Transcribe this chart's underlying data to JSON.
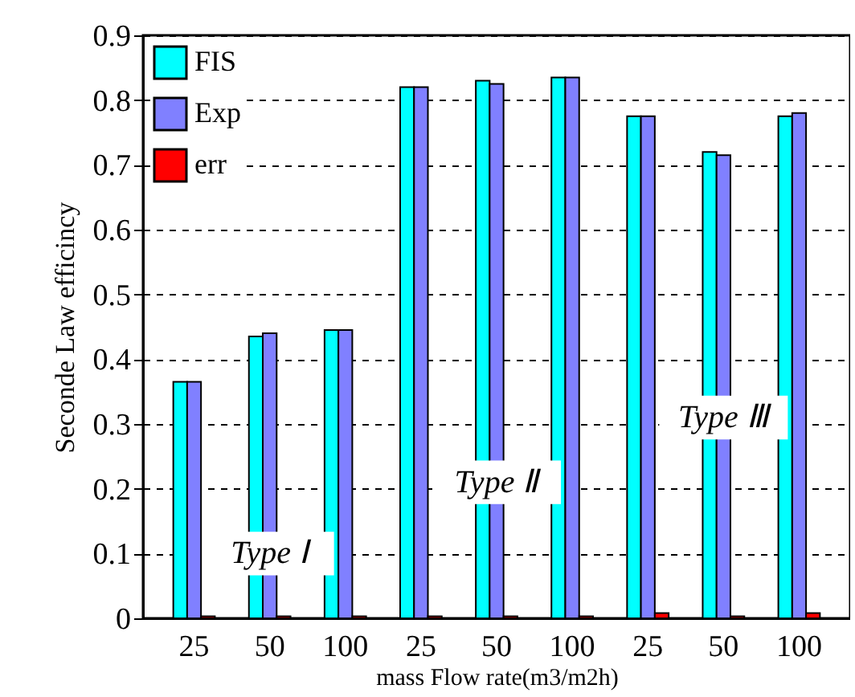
{
  "chart_data": {
    "type": "bar",
    "xlabel": "mass Flow rate(m3/m2h)",
    "ylabel": "Seconde Law efficincy",
    "categories": [
      "25",
      "50",
      "100",
      "25",
      "50",
      "100",
      "25",
      "50",
      "100"
    ],
    "series": [
      {
        "name": "FIS",
        "color": "#00ffff",
        "values": [
          0.365,
          0.435,
          0.445,
          0.82,
          0.83,
          0.835,
          0.775,
          0.72,
          0.775
        ]
      },
      {
        "name": "Exp",
        "color": "#8080ff",
        "values": [
          0.365,
          0.44,
          0.445,
          0.82,
          0.825,
          0.835,
          0.775,
          0.715,
          0.78
        ]
      },
      {
        "name": "err",
        "color": "#ff0000",
        "values": [
          0.003,
          0.003,
          0.003,
          0.003,
          0.003,
          0.003,
          0.008,
          0.003,
          0.008
        ]
      }
    ],
    "ylim": [
      0,
      0.9
    ],
    "yticks": [
      0,
      0.1,
      0.2,
      0.3,
      0.4,
      0.5,
      0.6,
      0.7,
      0.8,
      0.9
    ],
    "grid": "y",
    "legend": "top left",
    "annotations": [
      "Type Ⅰ",
      "Type Ⅱ",
      "Type Ⅲ"
    ]
  }
}
